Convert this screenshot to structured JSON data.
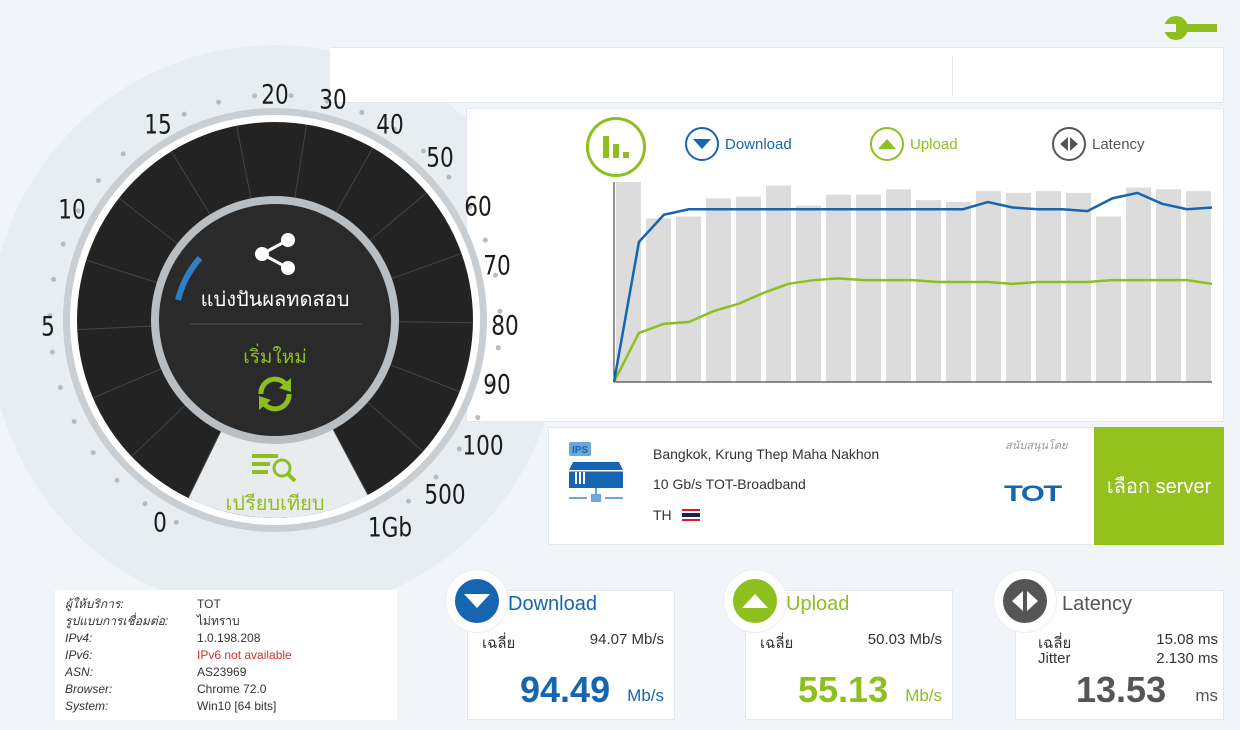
{
  "colors": {
    "download": "#1565b0",
    "upload": "#8dbf1e",
    "latency": "#555555",
    "server_button": "#95c11f"
  },
  "gauge": {
    "labels": [
      "0",
      "5",
      "10",
      "15",
      "20",
      "30",
      "40",
      "50",
      "60",
      "70",
      "80",
      "90",
      "100",
      "500",
      "1Gb"
    ],
    "share_label": "แบ่งปันผลทดสอบ",
    "restart_label": "เริ่มใหม่",
    "compare_label": "เปรียบเทียบ"
  },
  "legend": {
    "download": "Download",
    "upload": "Upload",
    "latency": "Latency"
  },
  "graph": {
    "bars": [
      110,
      90,
      91,
      101,
      102,
      108,
      97,
      103,
      103,
      106,
      100,
      99,
      105,
      104,
      105,
      104,
      91,
      107,
      106,
      105
    ],
    "download": [
      0,
      77,
      92,
      95,
      95,
      95,
      95,
      95,
      95,
      95,
      95,
      95,
      95,
      95,
      95,
      99,
      96,
      95,
      95,
      94,
      101,
      104,
      98,
      95,
      96
    ],
    "upload": [
      0,
      27,
      32,
      33,
      39,
      43,
      49,
      54,
      56,
      57,
      56,
      56,
      56,
      55,
      55,
      55,
      54,
      55,
      55,
      55,
      56,
      56,
      56,
      56,
      54
    ],
    "ymax": 110
  },
  "server": {
    "location": "Bangkok, Krung Thep Maha Nakhon",
    "provider": "10 Gb/s TOT-Broadband",
    "country": "TH",
    "sponsor_label": "สนับสนุนโดย",
    "sponsor_logo": "TOT",
    "ips_label": "IPS",
    "select_button": "เลือก server"
  },
  "client": [
    {
      "k": "ผู้ให้บริการ:",
      "v": "TOT"
    },
    {
      "k": "รูปแบบการเชื่อมต่อ:",
      "v": "ไม่ทราบ"
    },
    {
      "k": "IPv4:",
      "v": "1.0.198.208"
    },
    {
      "k": "IPv6:",
      "v": "IPv6 not available",
      "error": true
    },
    {
      "k": "ASN:",
      "v": "AS23969"
    },
    {
      "k": "Browser:",
      "v": "Chrome 72.0"
    },
    {
      "k": "System:",
      "v": "Win10 [64 bits]"
    }
  ],
  "results": {
    "download": {
      "title": "Download",
      "avg_label": "เฉลี่ย",
      "avg": "94.07 Mb/s",
      "value": "94.49",
      "unit": "Mb/s"
    },
    "upload": {
      "title": "Upload",
      "avg_label": "เฉลี่ย",
      "avg": "50.03 Mb/s",
      "value": "55.13",
      "unit": "Mb/s"
    },
    "latency": {
      "title": "Latency",
      "avg_label": "เฉลี่ย",
      "avg": "15.08 ms",
      "jitter_label": "Jitter",
      "jitter": "2.130 ms",
      "value": "13.53",
      "unit": "ms"
    }
  }
}
